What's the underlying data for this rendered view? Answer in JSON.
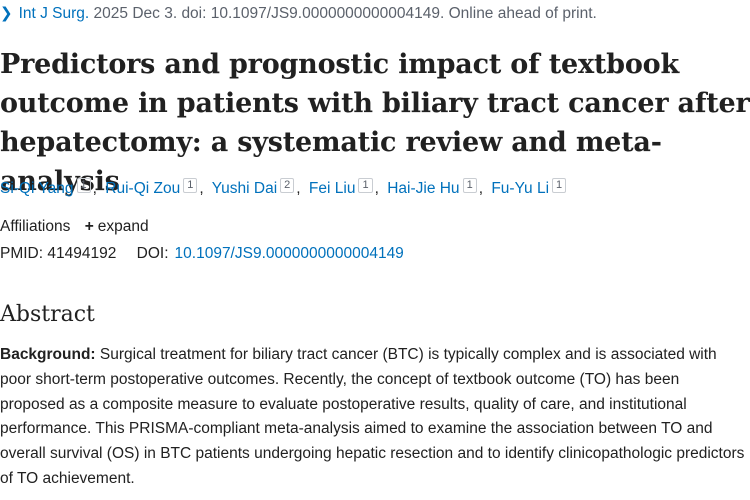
{
  "citation": {
    "journal": "Int J Surg.",
    "details": "2025 Dec 3. doi: 10.1097/JS9.0000000000004149. Online ahead of print."
  },
  "title": "Predictors and prognostic impact of textbook outcome in patients with biliary tract cancer after hepatectomy: a systematic review and meta-analysis",
  "authors": [
    {
      "name": "Si-Qi Yang",
      "aff": "1"
    },
    {
      "name": "Rui-Qi Zou",
      "aff": "1"
    },
    {
      "name": "Yushi Dai",
      "aff": "2"
    },
    {
      "name": "Fei Liu",
      "aff": "1"
    },
    {
      "name": "Hai-Jie Hu",
      "aff": "1"
    },
    {
      "name": "Fu-Yu Li",
      "aff": "1"
    }
  ],
  "affiliations": {
    "label": "Affiliations",
    "expand_label": "expand"
  },
  "identifiers": {
    "pmid_label": "PMID:",
    "pmid": "41494192",
    "doi_label": "DOI:",
    "doi": "10.1097/JS9.0000000000004149"
  },
  "abstract": {
    "heading": "Abstract",
    "background_label": "Background:",
    "background_text": "Surgical treatment for biliary tract cancer (BTC) is typically complex and is associated with poor short-term postoperative outcomes. Recently, the concept of textbook outcome (TO) has been proposed as a composite measure to evaluate postoperative results, quality of care, and institutional performance. This PRISMA-compliant meta-analysis aimed to examine the association between TO and overall survival (OS) in BTC patients undergoing hepatic resection and to identify clinicopathologic predictors of TO achievement."
  },
  "colors": {
    "link": "#0071bc",
    "text": "#212121",
    "muted": "#5b616b"
  }
}
